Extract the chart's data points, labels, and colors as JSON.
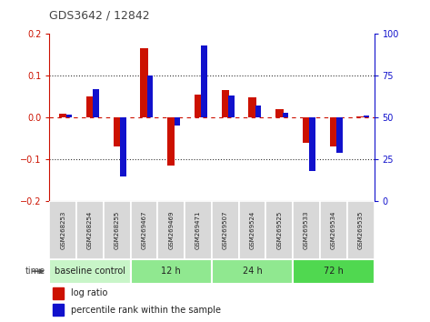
{
  "title": "GDS3642 / 12842",
  "samples": [
    "GSM268253",
    "GSM268254",
    "GSM268255",
    "GSM269467",
    "GSM269469",
    "GSM269471",
    "GSM269507",
    "GSM269524",
    "GSM269525",
    "GSM269533",
    "GSM269534",
    "GSM269535"
  ],
  "log_ratio": [
    0.01,
    0.05,
    -0.07,
    0.165,
    -0.115,
    0.055,
    0.065,
    0.048,
    0.02,
    -0.06,
    -0.07,
    0.003
  ],
  "percentile_rank": [
    52,
    67,
    15,
    75,
    45,
    93,
    63,
    57,
    53,
    18,
    29,
    51
  ],
  "groups": [
    {
      "label": "baseline control",
      "start": 0,
      "end": 3,
      "color": "#c8f5c8"
    },
    {
      "label": "12 h",
      "start": 3,
      "end": 6,
      "color": "#90e890"
    },
    {
      "label": "24 h",
      "start": 6,
      "end": 9,
      "color": "#90e890"
    },
    {
      "label": "72 h",
      "start": 9,
      "end": 12,
      "color": "#50d850"
    }
  ],
  "ylim_left": [
    -0.2,
    0.2
  ],
  "ylim_right": [
    0,
    100
  ],
  "log_color": "#cc1100",
  "pct_color": "#1111cc",
  "left_axis_color": "#cc1100",
  "right_axis_color": "#1111cc",
  "grid_dotted_color": "#333333",
  "zero_line_color": "#cc1100",
  "sample_bg": "#d8d8d8",
  "sample_border": "#ffffff"
}
